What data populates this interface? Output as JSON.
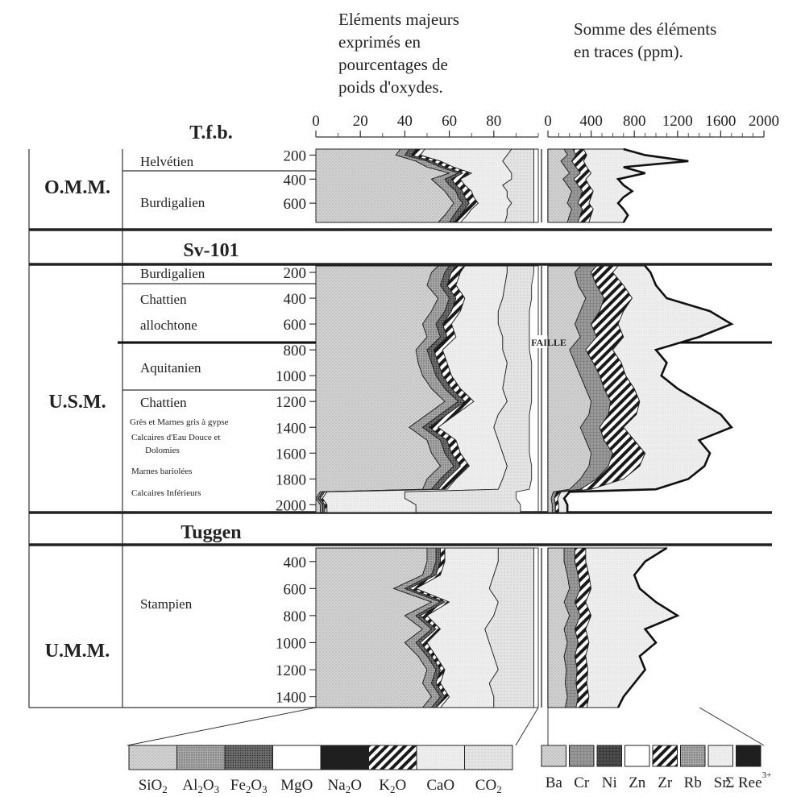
{
  "chart_data": {
    "type": "area",
    "headers": {
      "major": [
        "Eléments majeurs",
        "exprimés en",
        "pourcentages de",
        "poids d'oxydes."
      ],
      "trace": [
        "Somme des éléments",
        "en traces (ppm)."
      ]
    },
    "major_axis": {
      "ticks": [
        0,
        20,
        40,
        60,
        80
      ],
      "xlim": [
        0,
        100
      ]
    },
    "trace_axis": {
      "ticks": [
        0,
        400,
        800,
        1200,
        1600,
        2000
      ],
      "xlim": [
        0,
        2000
      ]
    },
    "fault_label": "FAILLE",
    "legend_major": [
      {
        "label": "SiO",
        "sub": "2",
        "color": "#c8c8c8",
        "pattern": "dots-light"
      },
      {
        "label": "Al",
        "sub": "2",
        "label2": "O",
        "sub2": "3",
        "color": "#a9a9a9",
        "pattern": "dots-mid"
      },
      {
        "label": "Fe",
        "sub": "2",
        "label2": "O",
        "sub2": "3",
        "color": "#6a6a6a",
        "pattern": "dots-dark"
      },
      {
        "label": "MgO",
        "color": "#ffffff",
        "pattern": "blank"
      },
      {
        "label": "Na",
        "sub": "2",
        "label2": "O",
        "color": "#1a1a1a",
        "pattern": "solid-dark"
      },
      {
        "label": "K",
        "sub": "2",
        "label2": "O",
        "color": "#ffffff",
        "pattern": "hatch"
      },
      {
        "label": "CaO",
        "color": "#ececec",
        "pattern": "fine"
      },
      {
        "label": "CO",
        "sub": "2",
        "color": "#dddddd",
        "pattern": "fine2"
      }
    ],
    "legend_trace": [
      {
        "label": "Ba",
        "color": "#bdbdbd",
        "pattern": "dots-light"
      },
      {
        "label": "Cr",
        "color": "#8c8c8c",
        "pattern": "grid"
      },
      {
        "label": "Ni",
        "color": "#5a5a5a",
        "pattern": "grid-dark"
      },
      {
        "label": "Zn",
        "color": "#ffffff",
        "pattern": "blank"
      },
      {
        "label": "Zr",
        "color": "#ffffff",
        "pattern": "hatch"
      },
      {
        "label": "Rb",
        "color": "#9a9a9a",
        "pattern": "dots-mid"
      },
      {
        "label": "Sr",
        "color": "#e2e2e2",
        "pattern": "fine"
      },
      {
        "label": "Σ Ree",
        "sup": "3+",
        "color": "#151515",
        "pattern": "solid-dark"
      }
    ],
    "sections": [
      {
        "name": "T.f.b.",
        "group": "O.M.M.",
        "depth_ticks": [
          200,
          400,
          600
        ],
        "depth_range": [
          150,
          760
        ],
        "stages": [
          "Helvétien",
          "Burdigalien"
        ],
        "major": {
          "depth": [
            150,
            200,
            250,
            300,
            350,
            400,
            450,
            500,
            550,
            600,
            650,
            700,
            760
          ],
          "SiO2": [
            38,
            36,
            45,
            50,
            60,
            52,
            55,
            58,
            60,
            62,
            60,
            58,
            55
          ],
          "Al2O3": [
            42,
            40,
            50,
            56,
            64,
            58,
            60,
            63,
            64,
            66,
            64,
            62,
            60
          ],
          "Fe2O3": [
            45,
            43,
            52,
            58,
            66,
            61,
            63,
            66,
            67,
            69,
            67,
            65,
            62
          ],
          "K2O": [
            49,
            47,
            56,
            62,
            70,
            65,
            67,
            70,
            71,
            73,
            70,
            68,
            65
          ],
          "CaO": [
            88,
            86,
            84,
            86,
            88,
            88,
            84,
            86,
            86,
            88,
            86,
            86,
            85
          ],
          "CO2": [
            98,
            98,
            98,
            98,
            98,
            98,
            98,
            98,
            98,
            98,
            98,
            98,
            98
          ]
        },
        "trace": {
          "depth": [
            150,
            200,
            250,
            300,
            350,
            400,
            450,
            500,
            550,
            600,
            650,
            700,
            760
          ],
          "Ba": [
            150,
            180,
            120,
            160,
            200,
            140,
            180,
            220,
            200,
            180,
            220,
            200,
            180
          ],
          "Cr": [
            230,
            260,
            220,
            260,
            300,
            240,
            280,
            320,
            300,
            280,
            320,
            300,
            280
          ],
          "Zr": [
            330,
            360,
            330,
            360,
            400,
            350,
            380,
            420,
            400,
            380,
            420,
            400,
            380
          ],
          "Sr": [
            700,
            900,
            1300,
            700,
            900,
            650,
            700,
            780,
            700,
            650,
            700,
            740,
            700
          ]
        }
      },
      {
        "name": "Sv-101",
        "group": "U.S.M.",
        "depth_ticks": [
          200,
          400,
          600,
          800,
          1000,
          1200,
          1400,
          1600,
          1800,
          2000
        ],
        "depth_range": [
          150,
          2060
        ],
        "stages": [
          "Burdigalien",
          "Chattien",
          "allochtone",
          "Aquitanien",
          "Chattien",
          "Grès et Marnes gris à gypse",
          "Calcaires d'Eau Douce et",
          "Dolomies",
          "Marnes bariolées",
          "Calcaires Inférieurs"
        ],
        "major": {
          "depth": [
            150,
            200,
            300,
            400,
            500,
            600,
            700,
            800,
            900,
            1000,
            1100,
            1200,
            1300,
            1400,
            1500,
            1600,
            1700,
            1800,
            1880,
            1900,
            1950,
            2000,
            2060
          ],
          "SiO2": [
            55,
            52,
            50,
            55,
            52,
            48,
            50,
            45,
            46,
            48,
            52,
            58,
            50,
            42,
            50,
            52,
            56,
            50,
            48,
            2,
            0,
            2,
            2
          ],
          "Al2O3": [
            60,
            58,
            56,
            60,
            58,
            54,
            56,
            50,
            52,
            54,
            58,
            64,
            56,
            48,
            56,
            58,
            62,
            56,
            52,
            3,
            1,
            3,
            3
          ],
          "Fe2O3": [
            63,
            61,
            59,
            63,
            61,
            57,
            59,
            53,
            55,
            57,
            61,
            67,
            59,
            51,
            59,
            61,
            65,
            59,
            55,
            4,
            2,
            4,
            4
          ],
          "K2O": [
            67,
            65,
            63,
            67,
            65,
            61,
            63,
            57,
            59,
            61,
            65,
            71,
            63,
            55,
            63,
            65,
            69,
            63,
            59,
            5,
            3,
            5,
            5
          ],
          "CaO": [
            86,
            86,
            85,
            84,
            82,
            82,
            84,
            84,
            86,
            85,
            84,
            86,
            82,
            80,
            82,
            84,
            86,
            84,
            82,
            40,
            40,
            45,
            45
          ],
          "CO2": [
            98,
            98,
            97,
            97,
            96,
            96,
            96,
            96,
            97,
            97,
            97,
            97,
            96,
            96,
            96,
            96,
            97,
            97,
            96,
            90,
            90,
            92,
            92
          ]
        },
        "trace": {
          "depth": [
            150,
            200,
            300,
            400,
            500,
            600,
            700,
            800,
            900,
            1000,
            1100,
            1200,
            1300,
            1400,
            1500,
            1600,
            1700,
            1800,
            1880,
            1900,
            1950,
            2000,
            2060
          ],
          "Ba": [
            300,
            250,
            280,
            350,
            300,
            250,
            300,
            200,
            250,
            300,
            350,
            400,
            380,
            300,
            350,
            400,
            380,
            300,
            200,
            50,
            30,
            40,
            40
          ],
          "Cr": [
            450,
            400,
            450,
            520,
            480,
            400,
            450,
            350,
            420,
            480,
            520,
            580,
            560,
            480,
            520,
            600,
            560,
            450,
            300,
            80,
            60,
            70,
            70
          ],
          "Zr": [
            650,
            600,
            700,
            780,
            700,
            650,
            700,
            600,
            680,
            720,
            800,
            850,
            820,
            700,
            800,
            900,
            850,
            700,
            400,
            120,
            90,
            100,
            100
          ],
          "Sr": [
            900,
            950,
            1000,
            1100,
            1500,
            1700,
            1400,
            1000,
            1100,
            1050,
            1200,
            1400,
            1600,
            1700,
            1400,
            1500,
            1450,
            1300,
            1000,
            200,
            150,
            180,
            180
          ]
        }
      },
      {
        "name": "Tuggen",
        "group": "U.M.M.",
        "depth_ticks": [
          400,
          600,
          800,
          1000,
          1200,
          1400
        ],
        "depth_range": [
          300,
          1480
        ],
        "stages": [
          "Stampien"
        ],
        "major": {
          "depth": [
            300,
            400,
            500,
            600,
            700,
            800,
            900,
            1000,
            1100,
            1200,
            1300,
            1400,
            1480
          ],
          "SiO2": [
            50,
            50,
            48,
            35,
            52,
            40,
            48,
            40,
            46,
            50,
            48,
            52,
            48
          ],
          "Al2O3": [
            54,
            54,
            52,
            40,
            56,
            45,
            52,
            45,
            50,
            54,
            52,
            56,
            52
          ],
          "Fe2O3": [
            56,
            56,
            54,
            42,
            58,
            47,
            54,
            47,
            52,
            56,
            54,
            58,
            54
          ],
          "K2O": [
            58,
            58,
            56,
            45,
            60,
            50,
            56,
            50,
            54,
            58,
            56,
            60,
            56
          ],
          "CaO": [
            82,
            82,
            80,
            78,
            82,
            80,
            76,
            78,
            80,
            82,
            78,
            80,
            80
          ],
          "CO2": [
            98,
            98,
            98,
            98,
            98,
            98,
            98,
            98,
            98,
            98,
            98,
            98,
            98
          ]
        },
        "trace": {
          "depth": [
            300,
            400,
            500,
            600,
            700,
            800,
            900,
            1000,
            1100,
            1200,
            1300,
            1400,
            1480
          ],
          "Ba": [
            150,
            150,
            180,
            200,
            150,
            200,
            150,
            180,
            150,
            170,
            160,
            180,
            160
          ],
          "Cr": [
            250,
            250,
            280,
            300,
            250,
            300,
            250,
            280,
            250,
            270,
            260,
            280,
            260
          ],
          "Zr": [
            350,
            350,
            380,
            400,
            350,
            400,
            350,
            380,
            350,
            370,
            360,
            380,
            360
          ],
          "Sr": [
            1100,
            900,
            800,
            850,
            1000,
            1200,
            900,
            1000,
            850,
            900,
            800,
            700,
            650
          ]
        }
      }
    ]
  }
}
